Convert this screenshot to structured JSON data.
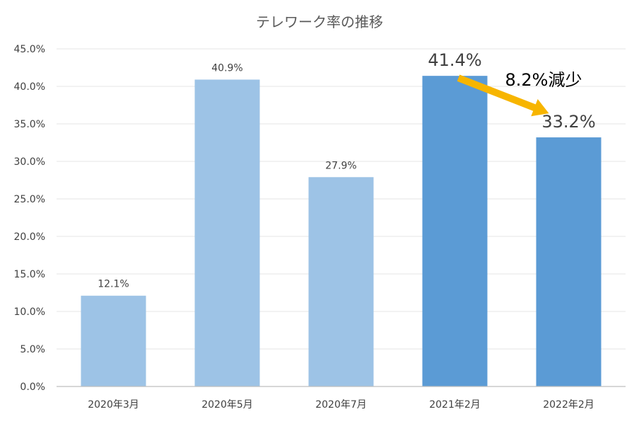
{
  "chart_data": {
    "type": "bar",
    "title": "テレワーク率の推移",
    "categories": [
      "2020年3月",
      "2020年5月",
      "2020年7月",
      "2021年2月",
      "2022年2月"
    ],
    "values": [
      12.1,
      40.9,
      27.9,
      41.4,
      33.2
    ],
    "value_labels": [
      "12.1%",
      "40.9%",
      "27.9%",
      "41.4%",
      "33.2%"
    ],
    "highlight": [
      false,
      false,
      false,
      true,
      true
    ],
    "y_ticks": [
      "0.0%",
      "5.0%",
      "10.0%",
      "15.0%",
      "20.0%",
      "25.0%",
      "30.0%",
      "35.0%",
      "40.0%",
      "45.0%"
    ],
    "ylim": [
      0,
      45
    ],
    "ystep": 5,
    "grid": true,
    "xlabel": "",
    "ylabel": "",
    "colors": {
      "normal_bar": "#9dc3e6",
      "highlight_bar": "#5b9bd5",
      "arrow": "#f7b500",
      "grid": "#e6e6e6",
      "axis": "#bfbfbf",
      "text": "#404040"
    },
    "annotation": {
      "text": "8.2%減少",
      "from_category": "2021年2月",
      "to_category": "2022年2月"
    }
  }
}
